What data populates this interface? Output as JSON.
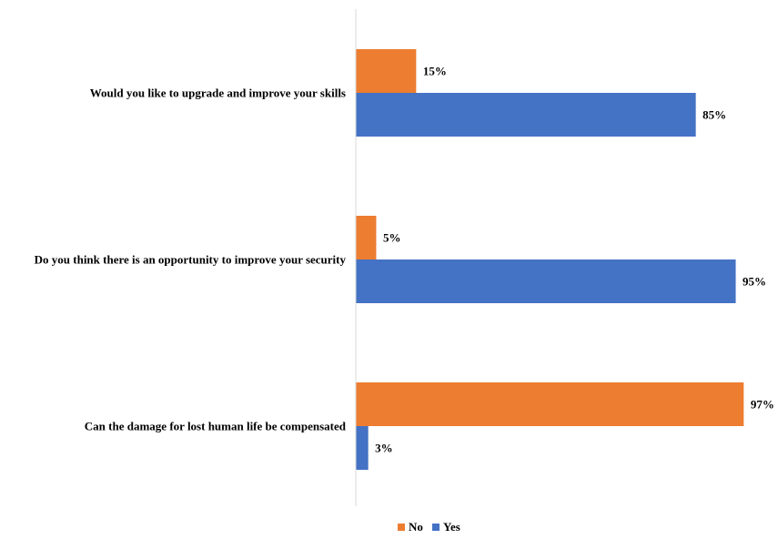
{
  "chart_data": {
    "type": "bar",
    "orientation": "horizontal",
    "categories": [
      "Would you like to upgrade and improve your skills",
      "Do you think there is an opportunity to improve your security",
      "Can the damage for lost human life be compensated"
    ],
    "series": [
      {
        "name": "No",
        "color": "#ED7D31",
        "values": [
          15,
          5,
          97
        ],
        "labels": [
          "15%",
          "5%",
          "97%"
        ]
      },
      {
        "name": "Yes",
        "color": "#4472C4",
        "values": [
          85,
          95,
          3
        ],
        "labels": [
          "85%",
          "95%",
          "3%"
        ]
      }
    ],
    "xlim": [
      0,
      100
    ],
    "grid": false,
    "legend_position": "bottom"
  }
}
